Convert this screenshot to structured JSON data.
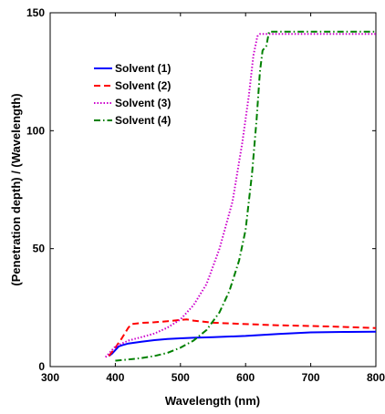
{
  "chart_data": {
    "type": "line",
    "title": "",
    "xlabel": "Wavelength (nm)",
    "ylabel": "(Penetration depth) / (Wavelength)",
    "xlim": [
      300,
      800
    ],
    "ylim": [
      0,
      150
    ],
    "xticks": [
      300,
      400,
      500,
      600,
      700,
      800
    ],
    "yticks": [
      0,
      50,
      100,
      150
    ],
    "grid": false,
    "legend_position": "upper-left",
    "series": [
      {
        "name": "Solvent (1)",
        "color": "#0000ff",
        "dash": "solid",
        "points": [
          [
            390,
            4.5
          ],
          [
            395,
            5.5
          ],
          [
            400,
            7
          ],
          [
            405,
            8.5
          ],
          [
            410,
            9
          ],
          [
            420,
            9.8
          ],
          [
            440,
            10.5
          ],
          [
            460,
            11.2
          ],
          [
            480,
            11.7
          ],
          [
            500,
            12
          ],
          [
            520,
            12.2
          ],
          [
            550,
            12.5
          ],
          [
            600,
            13
          ],
          [
            650,
            13.8
          ],
          [
            700,
            14.5
          ],
          [
            750,
            14.7
          ],
          [
            800,
            14.8
          ]
        ]
      },
      {
        "name": "Solvent (2)",
        "color": "#ff0000",
        "dash": "dashed",
        "points": [
          [
            390,
            4.5
          ],
          [
            400,
            8
          ],
          [
            410,
            12
          ],
          [
            420,
            16.5
          ],
          [
            425,
            18
          ],
          [
            440,
            18.5
          ],
          [
            460,
            18.8
          ],
          [
            480,
            19.2
          ],
          [
            500,
            19.8
          ],
          [
            510,
            20
          ],
          [
            520,
            19.5
          ],
          [
            550,
            18.6
          ],
          [
            600,
            18
          ],
          [
            650,
            17.5
          ],
          [
            700,
            17.2
          ],
          [
            750,
            16.8
          ],
          [
            800,
            16.3
          ]
        ]
      },
      {
        "name": "Solvent (3)",
        "color": "#cc00cc",
        "dash": "dotted",
        "points": [
          [
            385,
            4
          ],
          [
            400,
            8.5
          ],
          [
            420,
            11
          ],
          [
            440,
            12.5
          ],
          [
            460,
            14
          ],
          [
            480,
            16.5
          ],
          [
            500,
            20
          ],
          [
            520,
            26
          ],
          [
            540,
            35
          ],
          [
            560,
            50
          ],
          [
            580,
            70
          ],
          [
            595,
            95
          ],
          [
            605,
            115
          ],
          [
            612,
            132
          ],
          [
            618,
            140
          ],
          [
            622,
            141
          ],
          [
            700,
            141
          ],
          [
            800,
            141
          ]
        ]
      },
      {
        "name": "Solvent (4)",
        "color": "#008000",
        "dash": "dashdot",
        "points": [
          [
            400,
            2.5
          ],
          [
            420,
            3
          ],
          [
            440,
            3.6
          ],
          [
            460,
            4.5
          ],
          [
            480,
            5.8
          ],
          [
            500,
            8
          ],
          [
            520,
            11
          ],
          [
            540,
            15.5
          ],
          [
            560,
            23
          ],
          [
            575,
            32
          ],
          [
            590,
            45
          ],
          [
            600,
            58
          ],
          [
            610,
            82
          ],
          [
            617,
            105
          ],
          [
            622,
            125
          ],
          [
            626,
            134
          ],
          [
            632,
            136
          ],
          [
            636,
            142
          ],
          [
            700,
            142
          ],
          [
            800,
            142
          ]
        ]
      }
    ]
  }
}
